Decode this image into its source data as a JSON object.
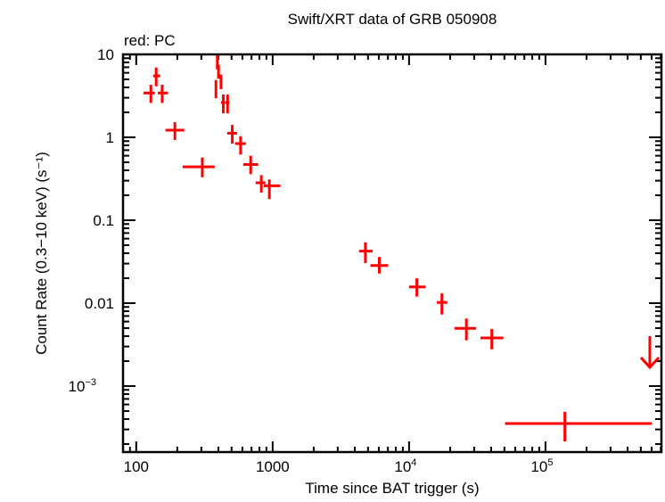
{
  "chart_data": {
    "type": "scatter",
    "title": "Swift/XRT data of GRB 050908",
    "subtitle": "red: PC",
    "xlabel": "Time since BAT trigger (s)",
    "ylabel": "Count Rate (0.3−10 keV) (s⁻¹)",
    "xscale": "log",
    "yscale": "log",
    "xlim": [
      80,
      708000
    ],
    "ylim": [
      0.00016,
      10
    ],
    "x_ticks": [
      {
        "value": 100,
        "label": "100",
        "exp": ""
      },
      {
        "value": 1000,
        "label": "1000",
        "exp": ""
      },
      {
        "value": 10000,
        "label": "10",
        "exp": "4"
      },
      {
        "value": 100000,
        "label": "10",
        "exp": "5"
      }
    ],
    "y_ticks": [
      {
        "value": 10,
        "label": "10",
        "exp": ""
      },
      {
        "value": 1,
        "label": "1",
        "exp": ""
      },
      {
        "value": 0.1,
        "label": "0.1",
        "exp": ""
      },
      {
        "value": 0.01,
        "label": "0.01",
        "exp": ""
      },
      {
        "value": 0.001,
        "label": "10",
        "exp": "−3"
      }
    ],
    "grid": false,
    "series": [
      {
        "color": "#ff0000",
        "points": [
          {
            "x": 128,
            "xlo": 113,
            "xhi": 137,
            "y": 3.42,
            "ylo": 2.6,
            "yhi": 4.3
          },
          {
            "x": 140,
            "xlo": 133,
            "xhi": 150,
            "y": 5.5,
            "ylo": 4.13,
            "yhi": 6.95
          },
          {
            "x": 155,
            "xlo": 144,
            "xhi": 171,
            "y": 3.42,
            "ylo": 2.6,
            "yhi": 4.3
          },
          {
            "x": 192,
            "xlo": 164,
            "xhi": 225,
            "y": 1.22,
            "ylo": 0.93,
            "yhi": 1.52
          },
          {
            "x": 305,
            "xlo": 219,
            "xhi": 376,
            "y": 0.44,
            "ylo": 0.33,
            "yhi": 0.57
          },
          {
            "x": 384,
            "xlo": 381,
            "xhi": 387,
            "y": 3.97,
            "ylo": 2.96,
            "yhi": 4.9
          },
          {
            "x": 393,
            "xlo": 391,
            "xhi": 396,
            "y": 8.4,
            "ylo": 6.6,
            "yhi": 9.8
          },
          {
            "x": 401,
            "xlo": 398,
            "xhi": 404,
            "y": 6.25,
            "ylo": 5.1,
            "yhi": 7.5
          },
          {
            "x": 418,
            "xlo": 414,
            "xhi": 422,
            "y": 4.68,
            "ylo": 3.8,
            "yhi": 5.7
          },
          {
            "x": 435,
            "xlo": 418,
            "xhi": 450,
            "y": 2.63,
            "ylo": 1.95,
            "yhi": 3.28
          },
          {
            "x": 467,
            "xlo": 452,
            "xhi": 482,
            "y": 2.63,
            "ylo": 1.95,
            "yhi": 3.28
          },
          {
            "x": 506,
            "xlo": 464,
            "xhi": 549,
            "y": 1.12,
            "ylo": 0.84,
            "yhi": 1.41
          },
          {
            "x": 582,
            "xlo": 531,
            "xhi": 636,
            "y": 0.84,
            "ylo": 0.62,
            "yhi": 1.03
          },
          {
            "x": 690,
            "xlo": 609,
            "xhi": 784,
            "y": 0.47,
            "ylo": 0.36,
            "yhi": 0.6
          },
          {
            "x": 826,
            "xlo": 750,
            "xhi": 886,
            "y": 0.283,
            "ylo": 0.215,
            "yhi": 0.35
          },
          {
            "x": 946,
            "xlo": 861,
            "xhi": 1140,
            "y": 0.26,
            "ylo": 0.18,
            "yhi": 0.31
          },
          {
            "x": 4786,
            "xlo": 4300,
            "xhi": 5400,
            "y": 0.0424,
            "ylo": 0.0305,
            "yhi": 0.0542
          },
          {
            "x": 6050,
            "xlo": 5210,
            "xhi": 7040,
            "y": 0.0285,
            "ylo": 0.0228,
            "yhi": 0.036
          },
          {
            "x": 11400,
            "xlo": 10000,
            "xhi": 13200,
            "y": 0.0157,
            "ylo": 0.012,
            "yhi": 0.0199
          },
          {
            "x": 17400,
            "xlo": 16000,
            "xhi": 19100,
            "y": 0.0102,
            "ylo": 0.0073,
            "yhi": 0.0131
          },
          {
            "x": 26300,
            "xlo": 21500,
            "xhi": 31000,
            "y": 0.00497,
            "ylo": 0.00356,
            "yhi": 0.00652
          },
          {
            "x": 40400,
            "xlo": 33400,
            "xhi": 49100,
            "y": 0.00381,
            "ylo": 0.00278,
            "yhi": 0.00488
          },
          {
            "x": 138700,
            "xlo": 50600,
            "xhi": 603000,
            "y": 0.000353,
            "ylo": 0.000215,
            "yhi": 0.00049
          }
        ],
        "upper_limits": [
          {
            "x": 582000,
            "y": 0.004
          }
        ]
      }
    ]
  }
}
